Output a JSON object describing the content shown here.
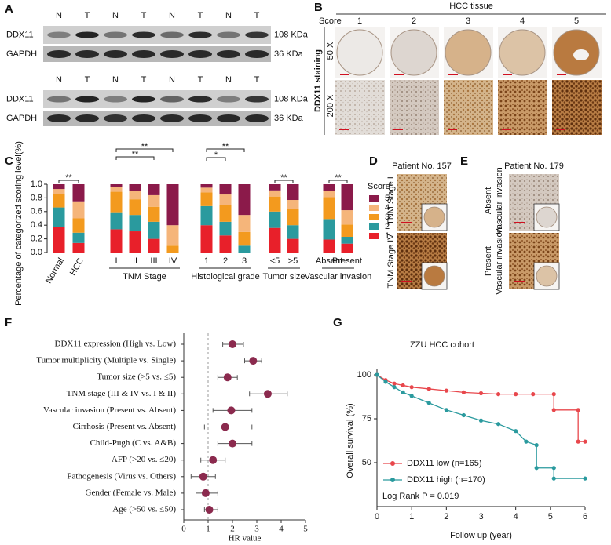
{
  "panels": {
    "A": {
      "label": "A",
      "blots": [
        {
          "lanes": [
            "N",
            "T",
            "N",
            "T",
            "N",
            "T",
            "N",
            "T"
          ],
          "rows": [
            {
              "protein": "DDX11",
              "size": "108 KDa"
            },
            {
              "protein": "GAPDH",
              "size": "36 KDa"
            }
          ]
        },
        {
          "lanes": [
            "N",
            "T",
            "N",
            "T",
            "N",
            "T",
            "N",
            "T"
          ],
          "rows": [
            {
              "protein": "DDX11",
              "size": "108 KDa"
            },
            {
              "protein": "GAPDH",
              "size": "36 KDa"
            }
          ]
        }
      ]
    },
    "B": {
      "label": "B",
      "title": "HCC tissue",
      "score_label": "Score",
      "scores": [
        "1",
        "2",
        "3",
        "4",
        "5"
      ],
      "magnifications": [
        "50 X",
        "200 X"
      ],
      "stain": "DDX11 staining"
    },
    "D": {
      "label": "D",
      "patient": "Patient No. 157",
      "rows": [
        "TNM Stage I",
        "TNM Stage IV"
      ]
    },
    "E": {
      "label": "E",
      "patient": "Patient No. 179",
      "rows": [
        {
          "status": "Absent",
          "feature": "Vascular invasion"
        },
        {
          "status": "Present",
          "feature": "Vascular invasion"
        }
      ]
    }
  },
  "chart_data": [
    {
      "label": "C",
      "type": "stacked_bar",
      "ylabel": "Percentage of categorized scoring level(%)",
      "categories": [
        "Normal",
        "HCC",
        "I",
        "II",
        "III",
        "IV",
        "1",
        "2",
        "3",
        "<5",
        ">5",
        "Absent",
        "Present"
      ],
      "groups": [
        {
          "name": "TNM Stage",
          "from": 2,
          "to": 5
        },
        {
          "name": "Histological grade",
          "from": 6,
          "to": 8
        },
        {
          "name": "Tumor size",
          "from": 9,
          "to": 10
        },
        {
          "name": "Vascular invasion",
          "from": 11,
          "to": 12
        }
      ],
      "legend_title": "Score",
      "series": [
        {
          "name": "1",
          "color": "#e8202a",
          "values": [
            0.37,
            0.14,
            0.34,
            0.31,
            0.2,
            0,
            0.4,
            0.25,
            0,
            0.36,
            0.2,
            0.19,
            0.13
          ]
        },
        {
          "name": "2",
          "color": "#2a9a9e",
          "values": [
            0.29,
            0.15,
            0.25,
            0.24,
            0.25,
            0,
            0.28,
            0.2,
            0.1,
            0.24,
            0.2,
            0.3,
            0.1
          ]
        },
        {
          "name": "3",
          "color": "#f39a1e",
          "values": [
            0.2,
            0.21,
            0.3,
            0.23,
            0.22,
            0.1,
            0.2,
            0.25,
            0.2,
            0.22,
            0.24,
            0.32,
            0.18
          ]
        },
        {
          "name": "4",
          "color": "#f5b57a",
          "values": [
            0.07,
            0.25,
            0.07,
            0.12,
            0.17,
            0.3,
            0.07,
            0.15,
            0.25,
            0.09,
            0.13,
            0.09,
            0.21
          ]
        },
        {
          "name": "5",
          "color": "#8b1a4a",
          "values": [
            0.07,
            0.25,
            0.04,
            0.1,
            0.16,
            0.6,
            0.05,
            0.15,
            0.45,
            0.09,
            0.23,
            0.1,
            0.38
          ]
        }
      ],
      "ylim": [
        0,
        1
      ],
      "yticks": [
        {
          "value": 0,
          "label": "0.0"
        },
        0.2,
        0.4,
        0.6,
        0.8,
        {
          "value": 1,
          "label": "1.0"
        }
      ],
      "annotations": [
        {
          "text": "**",
          "from": 0,
          "to": 1
        },
        {
          "text": "**",
          "from": 2,
          "to": 5
        },
        {
          "text": "**",
          "from": 2,
          "to": 4
        },
        {
          "text": "**",
          "from": 6,
          "to": 8
        },
        {
          "text": "*",
          "from": 6,
          "to": 7
        },
        {
          "text": "**",
          "from": 9,
          "to": 10
        },
        {
          "text": "**",
          "from": 11,
          "to": 12
        }
      ]
    },
    {
      "label": "F",
      "type": "forest",
      "xlabel": "HR value",
      "categories": [
        "DDX11 expression (High vs. Low)",
        "Tumor multiplicity (Multiple vs. Single)",
        "Tumor size (>5 vs. ≤5)",
        "TNM stage (III & IV vs. I & II)",
        "Vascular invasion (Present vs. Absent)",
        "Cirrhosis (Present vs. Absent)",
        "Child-Pugh (C vs. A&B)",
        "AFP (>20 vs. ≤20)",
        "Pathogenesis (Virus vs. Others)",
        "Gender (Female vs. Male)",
        "Age (>50 vs. ≤50)"
      ],
      "values": [
        2.0,
        2.85,
        1.8,
        3.45,
        1.95,
        1.7,
        2.0,
        1.2,
        0.8,
        0.9,
        1.05
      ],
      "lower": [
        1.6,
        2.5,
        1.4,
        2.7,
        1.2,
        0.85,
        1.4,
        0.7,
        0.3,
        0.5,
        0.85
      ],
      "upper": [
        2.45,
        3.2,
        2.2,
        4.25,
        2.8,
        2.8,
        2.8,
        1.7,
        1.3,
        1.4,
        1.4
      ],
      "color": "#8b2a4e",
      "xlim": [
        0,
        5
      ],
      "xticks": [
        0,
        1,
        2,
        3,
        4,
        5
      ],
      "reference_line": 1
    },
    {
      "label": "G",
      "type": "line",
      "title": "ZZU HCC cohort",
      "xlabel": "Follow up (year)",
      "ylabel": "Overall survival (%)",
      "series": [
        {
          "name": "DDX11 low (n=165)",
          "color": "#e8474c",
          "x": [
            0,
            0.25,
            0.5,
            0.75,
            1,
            1.5,
            2,
            2.5,
            3,
            3.5,
            4,
            4.5,
            5.1,
            5.1,
            5.8,
            5.8,
            6
          ],
          "values": [
            100,
            97,
            95,
            94,
            93,
            92,
            91,
            90,
            89.5,
            89,
            89,
            89,
            89,
            80,
            80,
            62,
            62
          ]
        },
        {
          "name": "DDX11 high (n=170)",
          "color": "#2a9a9e",
          "x": [
            0,
            0.25,
            0.5,
            0.75,
            1,
            1.5,
            2,
            2.5,
            3,
            3.5,
            4,
            4.3,
            4.6,
            4.6,
            5.1,
            5.1,
            6
          ],
          "values": [
            100,
            96,
            93,
            90,
            88,
            84,
            80,
            77,
            74,
            72,
            68,
            62,
            60,
            47,
            47,
            41,
            41
          ]
        }
      ],
      "xlim": [
        0,
        6
      ],
      "xticks": [
        0,
        1,
        2,
        3,
        4,
        5,
        6
      ],
      "ylim": [
        25,
        100
      ],
      "yticks": [
        50,
        75,
        100
      ],
      "annotation": "Log Rank P = 0.019",
      "legend": "lower left"
    }
  ]
}
